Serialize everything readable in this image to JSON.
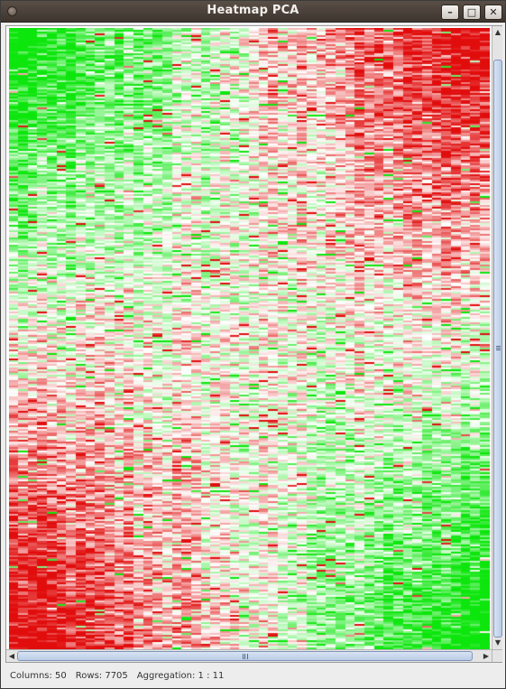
{
  "window": {
    "title": "Heatmap PCA",
    "buttons": {
      "minimize": "–",
      "maximize": "□",
      "close": "✕"
    }
  },
  "scrollbars": {
    "up": "▲",
    "down": "▼",
    "left": "◀",
    "right": "▶"
  },
  "status": {
    "columns": "Columns: 50",
    "rows": "Rows: 7705",
    "aggregation": "Aggregation: 1 : 11"
  },
  "heatmap": {
    "columns": 50,
    "rows": 7705,
    "aggregation": 11,
    "low_color": "#00e000",
    "mid_color": "#ffffff",
    "high_color": "#e00000"
  }
}
